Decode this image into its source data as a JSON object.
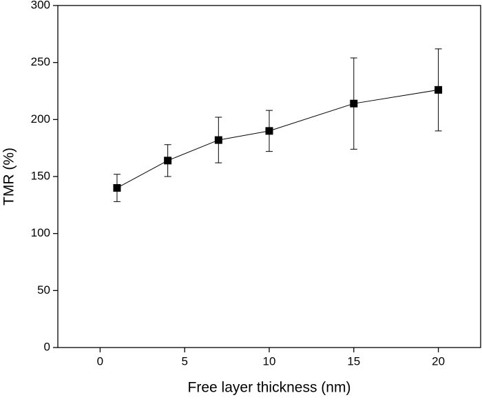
{
  "chart_data": {
    "type": "line",
    "x_label": "Free layer thickness (nm)",
    "y_label": "TMR (%)",
    "x": [
      1,
      4,
      7,
      10,
      15,
      20
    ],
    "series": [
      {
        "color": "#000000",
        "values": [
          140,
          164,
          182,
          190,
          214,
          226
        ],
        "errors": [
          12,
          14,
          20,
          18,
          40,
          36
        ]
      }
    ],
    "xlim": [
      -2.5,
      22.5
    ],
    "xticks": [
      0,
      5,
      10,
      15,
      20
    ],
    "ylim": [
      0,
      300
    ],
    "yticks": [
      0,
      50,
      100,
      150,
      200,
      250,
      300
    ]
  }
}
